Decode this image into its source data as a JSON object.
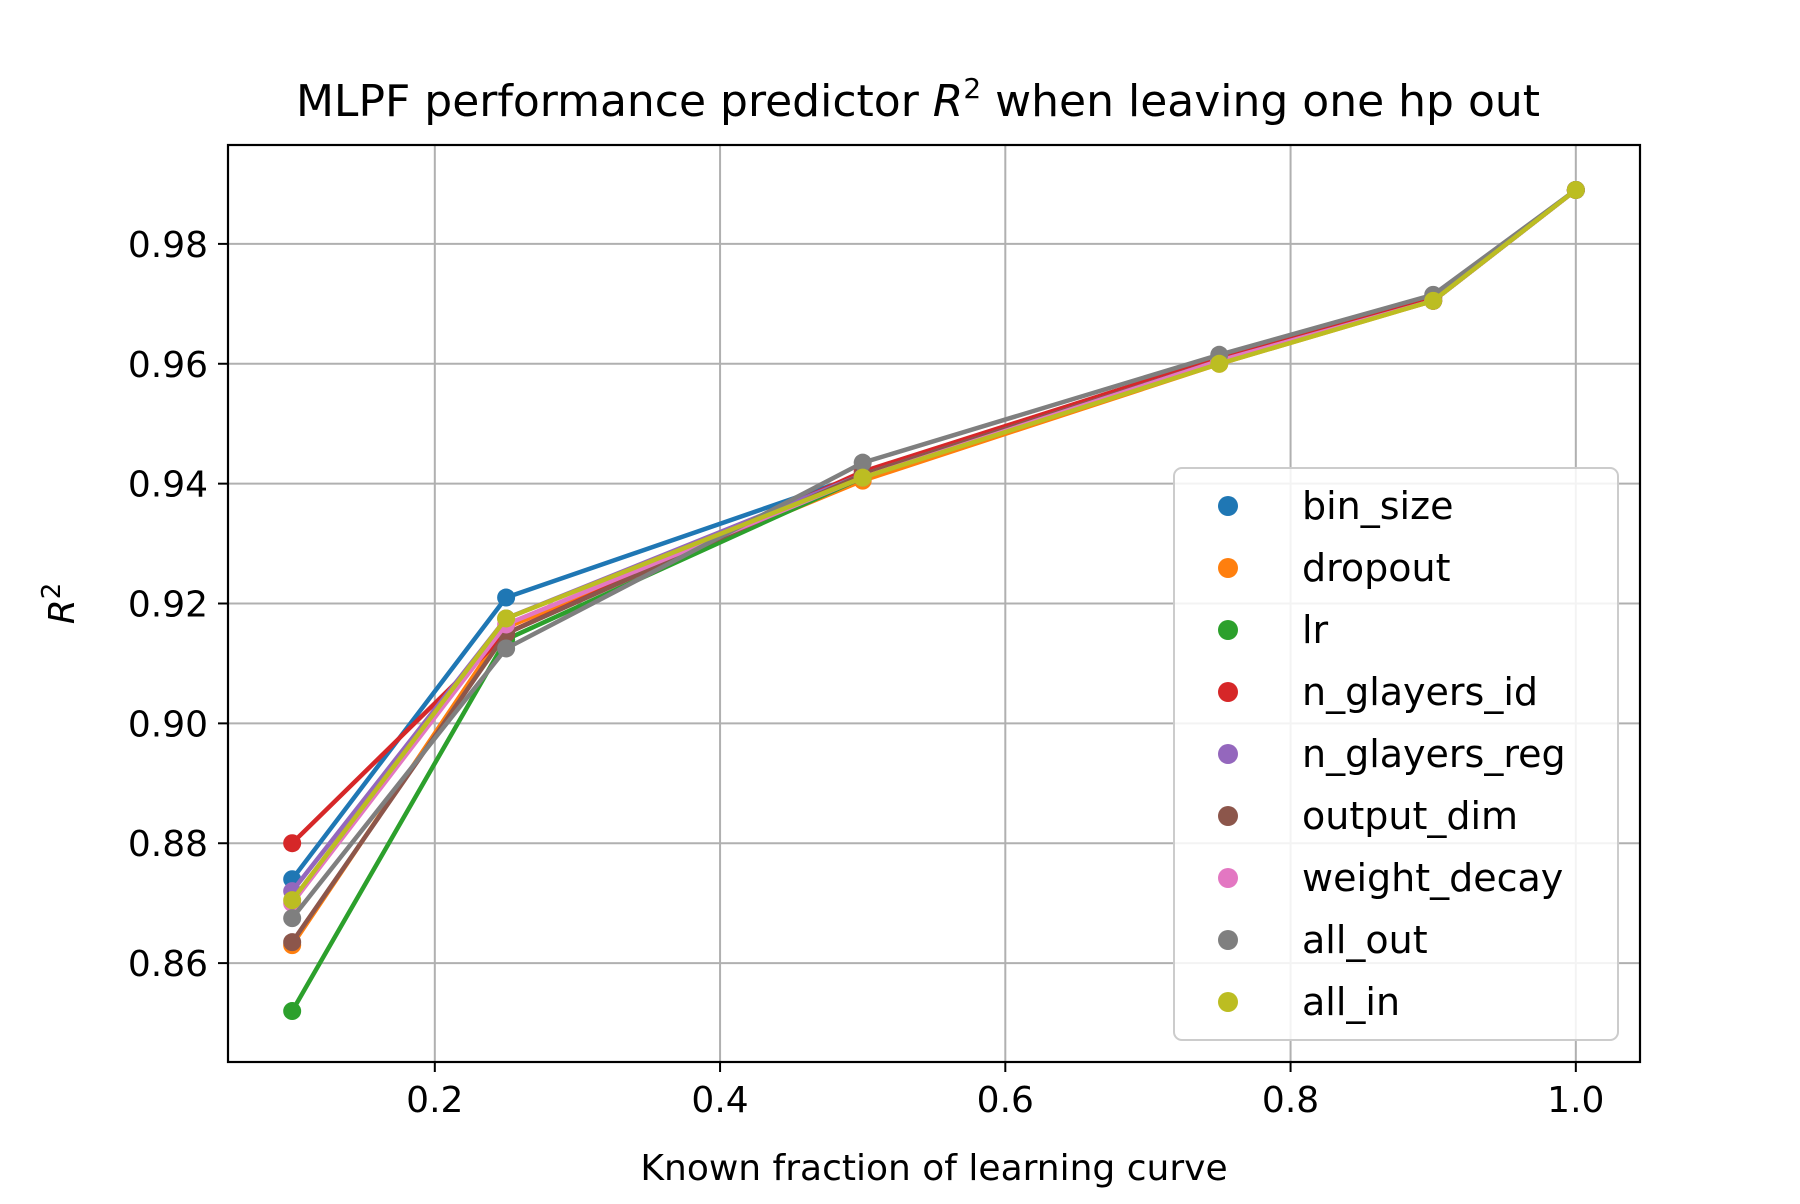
{
  "chart_data": {
    "type": "line",
    "title_prefix": "MLPF performance predictor ",
    "title_var": "R",
    "title_sup": "2",
    "title_suffix": " when leaving one hp out",
    "xlabel": "Known fraction of learning curve",
    "ylabel_var": "R",
    "ylabel_sup": "2",
    "xlim": [
      0.055,
      1.045
    ],
    "ylim": [
      0.8435,
      0.9965
    ],
    "xticks": [
      0.2,
      0.4,
      0.6,
      0.8,
      1.0
    ],
    "xtick_labels": [
      "0.2",
      "0.4",
      "0.6",
      "0.8",
      "1.0"
    ],
    "yticks": [
      0.86,
      0.88,
      0.9,
      0.92,
      0.94,
      0.96,
      0.98
    ],
    "ytick_labels": [
      "0.86",
      "0.88",
      "0.90",
      "0.92",
      "0.94",
      "0.96",
      "0.98"
    ],
    "grid": true,
    "legend_position": "lower-right",
    "x": [
      0.1,
      0.25,
      0.5,
      0.75,
      0.9,
      1.0
    ],
    "series": [
      {
        "name": "bin_size",
        "color": "#1f77b4",
        "values": [
          0.874,
          0.921,
          0.9415,
          0.9605,
          0.9705,
          0.989
        ]
      },
      {
        "name": "dropout",
        "color": "#ff7f0e",
        "values": [
          0.863,
          0.916,
          0.9405,
          0.96,
          0.9705,
          0.989
        ]
      },
      {
        "name": "lr",
        "color": "#2ca02c",
        "values": [
          0.852,
          0.914,
          0.941,
          0.9605,
          0.971,
          0.989
        ]
      },
      {
        "name": "n_glayers_id",
        "color": "#d62728",
        "values": [
          0.88,
          0.915,
          0.942,
          0.961,
          0.971,
          0.989
        ]
      },
      {
        "name": "n_glayers_reg",
        "color": "#9467bd",
        "values": [
          0.872,
          0.9175,
          0.9415,
          0.9605,
          0.9705,
          0.989
        ]
      },
      {
        "name": "output_dim",
        "color": "#8c564b",
        "values": [
          0.8635,
          0.915,
          0.9415,
          0.9605,
          0.9705,
          0.989
        ]
      },
      {
        "name": "weight_decay",
        "color": "#e377c2",
        "values": [
          0.87,
          0.9165,
          0.941,
          0.9605,
          0.9705,
          0.989
        ]
      },
      {
        "name": "all_out",
        "color": "#7f7f7f",
        "values": [
          0.8675,
          0.9125,
          0.9435,
          0.9615,
          0.9715,
          0.989
        ]
      },
      {
        "name": "all_in",
        "color": "#bcbd22",
        "values": [
          0.8705,
          0.9175,
          0.941,
          0.96,
          0.9705,
          0.989
        ]
      }
    ]
  }
}
